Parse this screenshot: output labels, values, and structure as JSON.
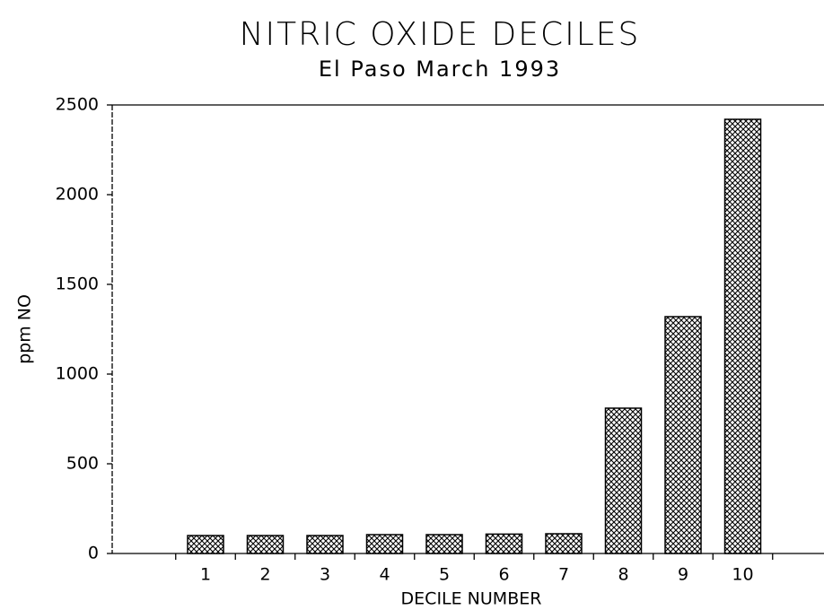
{
  "chart_data": {
    "type": "bar",
    "title": "NITRIC OXIDE DECILES",
    "subtitle": "El Paso March 1993",
    "x_label": "DECILE NUMBER",
    "y_label": "ppm NO",
    "categories": [
      "1",
      "2",
      "3",
      "4",
      "5",
      "6",
      "7",
      "8",
      "9",
      "10"
    ],
    "values": [
      100,
      100,
      100,
      105,
      105,
      108,
      110,
      810,
      1320,
      2420
    ],
    "color": "#000000",
    "ylim": [
      0,
      2500
    ],
    "yticks": [
      0,
      500,
      1000,
      1500,
      2000,
      2500
    ],
    "grid": false
  }
}
